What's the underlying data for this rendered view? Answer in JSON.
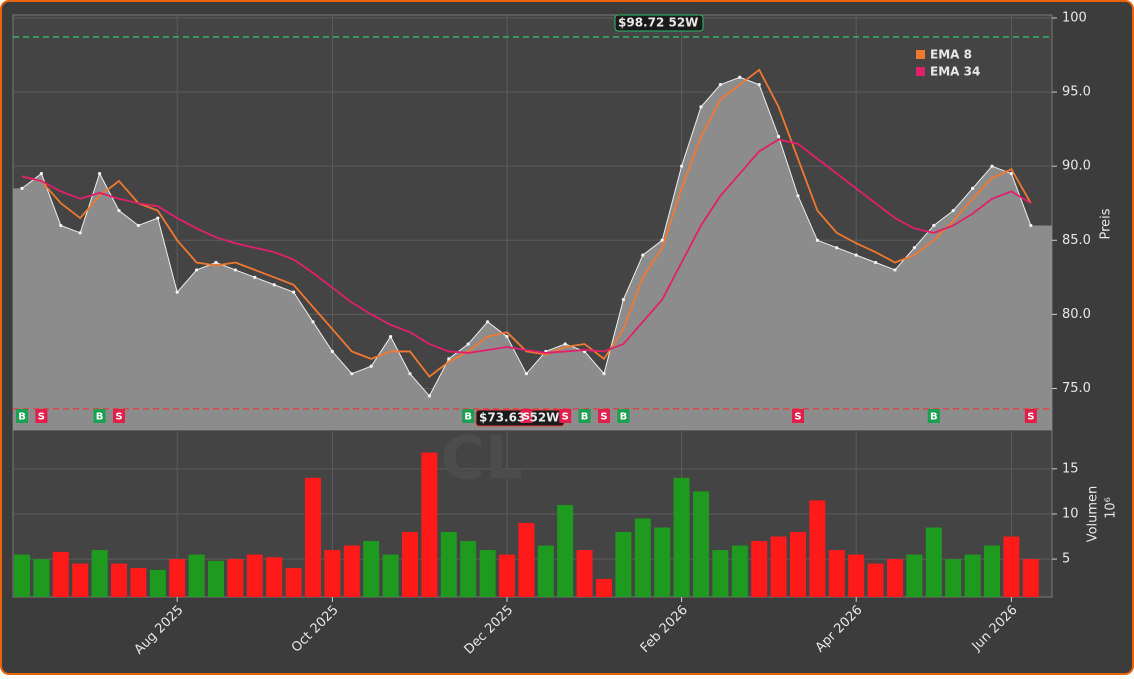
{
  "chart_data": [
    {
      "type": "area",
      "categories": [
        null,
        null,
        null,
        null,
        null,
        null,
        null,
        null,
        "Aug 2025",
        null,
        null,
        null,
        null,
        null,
        null,
        null,
        "Oct 2025",
        null,
        null,
        null,
        null,
        null,
        null,
        null,
        null,
        "Dec 2025",
        null,
        null,
        null,
        null,
        null,
        null,
        null,
        null,
        "Feb 2026",
        null,
        null,
        null,
        null,
        null,
        null,
        null,
        null,
        "Apr 2026",
        null,
        null,
        null,
        null,
        null,
        null,
        null,
        "Jun 2026",
        null
      ],
      "values": [
        88.5,
        89.5,
        86,
        85.5,
        89.5,
        87,
        86,
        86.5,
        81.5,
        83,
        83.5,
        83,
        82.5,
        82,
        81.5,
        79.5,
        77.5,
        76,
        76.5,
        78.5,
        76,
        74.5,
        77,
        78,
        79.5,
        78.5,
        76,
        77.5,
        78,
        77.5,
        76,
        81,
        84,
        85,
        90,
        94,
        95.5,
        96,
        95.5,
        92,
        88,
        85,
        84.5,
        84,
        83.5,
        83,
        84.5,
        86,
        87,
        88.5,
        90,
        89.5,
        86
      ],
      "color": "#8c8c8c",
      "series": [
        {
          "name": "EMA 8",
          "color": "#f07830",
          "values": [
            89.3,
            89,
            87.5,
            86.5,
            88,
            89,
            87.5,
            87,
            85,
            83.5,
            83.3,
            83.5,
            83,
            82.5,
            82,
            80.5,
            79,
            77.5,
            77,
            77.5,
            77.5,
            75.8,
            76.8,
            77.5,
            78.5,
            78.8,
            77.5,
            77.3,
            77.8,
            78,
            77,
            79,
            82.5,
            84.5,
            88.5,
            92,
            94.5,
            95.5,
            96.5,
            94,
            90.5,
            87,
            85.5,
            84.8,
            84.2,
            83.5,
            84,
            85,
            86.3,
            87.8,
            89.2,
            89.8,
            87.5
          ]
        },
        {
          "name": "EMA 34",
          "color": "#e0206a",
          "values": [
            89.3,
            89,
            88.3,
            87.8,
            88.2,
            87.8,
            87.5,
            87.3,
            86.5,
            85.8,
            85.2,
            84.8,
            84.5,
            84.2,
            83.7,
            82.8,
            81.8,
            80.8,
            80,
            79.3,
            78.8,
            78,
            77.5,
            77.4,
            77.6,
            77.8,
            77.6,
            77.4,
            77.5,
            77.6,
            77.5,
            78,
            79.5,
            81,
            83.5,
            86,
            88,
            89.5,
            91,
            91.8,
            91.5,
            90.5,
            89.5,
            88.5,
            87.5,
            86.5,
            85.8,
            85.5,
            86,
            86.8,
            87.8,
            88.3,
            87.5
          ]
        }
      ],
      "reference_lines": [
        {
          "value": 98.72,
          "label": "$98.72 52W",
          "color": "#2ebd6b"
        },
        {
          "value": 73.63,
          "label": "$73.63 52W",
          "color": "#e04040"
        }
      ],
      "signals": [
        "B",
        "S",
        null,
        null,
        "B",
        "S",
        null,
        null,
        null,
        null,
        null,
        null,
        null,
        null,
        null,
        null,
        null,
        null,
        null,
        null,
        null,
        null,
        null,
        "B",
        null,
        null,
        "S",
        null,
        "S",
        "B",
        "S",
        "B",
        null,
        null,
        null,
        null,
        null,
        null,
        null,
        null,
        "S",
        null,
        null,
        null,
        null,
        null,
        null,
        "B",
        null,
        null,
        null,
        null,
        "S"
      ],
      "signal_colors": {
        "B": "#1aa050",
        "S": "#e0204a"
      },
      "watermark": "CL",
      "ylabel": "Preis",
      "ylim": [
        72.2,
        100.2
      ],
      "yticks": [
        {
          "value": 75,
          "label": "75.0"
        },
        {
          "value": 80,
          "label": "80.0"
        },
        {
          "value": 85,
          "label": "85.0"
        },
        {
          "value": 90,
          "label": "90.0"
        },
        {
          "value": 95,
          "label": "95.0"
        },
        100
      ],
      "grid": true
    },
    {
      "type": "bar",
      "values": [
        5.5,
        5,
        5.8,
        4.5,
        6,
        4.5,
        4,
        3.8,
        5,
        5.5,
        4.8,
        5,
        5.5,
        5.2,
        4,
        14,
        6,
        6.5,
        7,
        5.5,
        8,
        16.8,
        8,
        7,
        6,
        5.5,
        9,
        6.5,
        11,
        6,
        2.8,
        8,
        9.5,
        8.5,
        14,
        12.5,
        6,
        6.5,
        7,
        7.5,
        8,
        11.5,
        6,
        5.5,
        4.5,
        5,
        5.5,
        8.5,
        5,
        5.5,
        6.5,
        7.5,
        5
      ],
      "up_color": "#1e9a1e",
      "down_color": "#ff1a1a",
      "ylabel": "Volumen",
      "unit_label": "10⁶",
      "ylim": [
        0.8,
        19.3
      ],
      "yticks": [
        5,
        10,
        15
      ],
      "grid": true
    }
  ]
}
